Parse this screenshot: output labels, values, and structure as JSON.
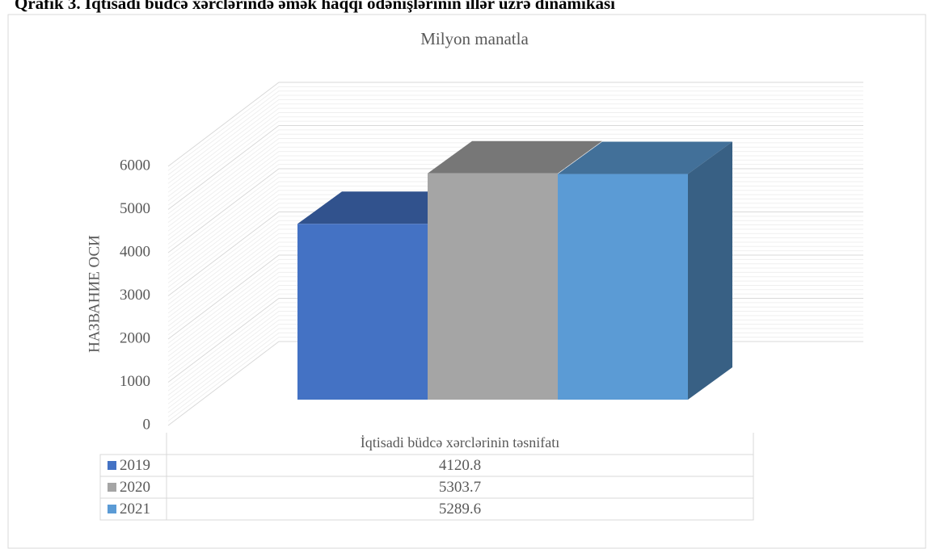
{
  "chart_data": {
    "type": "bar3d",
    "title": "Qrafik 3. İqtisadi büdcə xərclərində əmək haqqı ödənişlərinin illər üzrə dinamikası",
    "subtitle": "Milyon manatla",
    "y_axis_label": "НАЗВАНИЕ ОСИ",
    "categories": [
      "İqtisadi büdcə xərclərinin təsnifatı"
    ],
    "series": [
      {
        "name": "2019",
        "color": "#4472c4",
        "values": [
          4120.8
        ]
      },
      {
        "name": "2020",
        "color": "#a5a5a5",
        "values": [
          5303.7
        ]
      },
      {
        "name": "2021",
        "color": "#5b9bd5",
        "values": [
          5289.6
        ]
      }
    ],
    "ylim": [
      0,
      6000
    ],
    "yticks": [
      0,
      1000,
      2000,
      3000,
      4000,
      5000,
      6000
    ],
    "grid": true,
    "legend": "table"
  }
}
